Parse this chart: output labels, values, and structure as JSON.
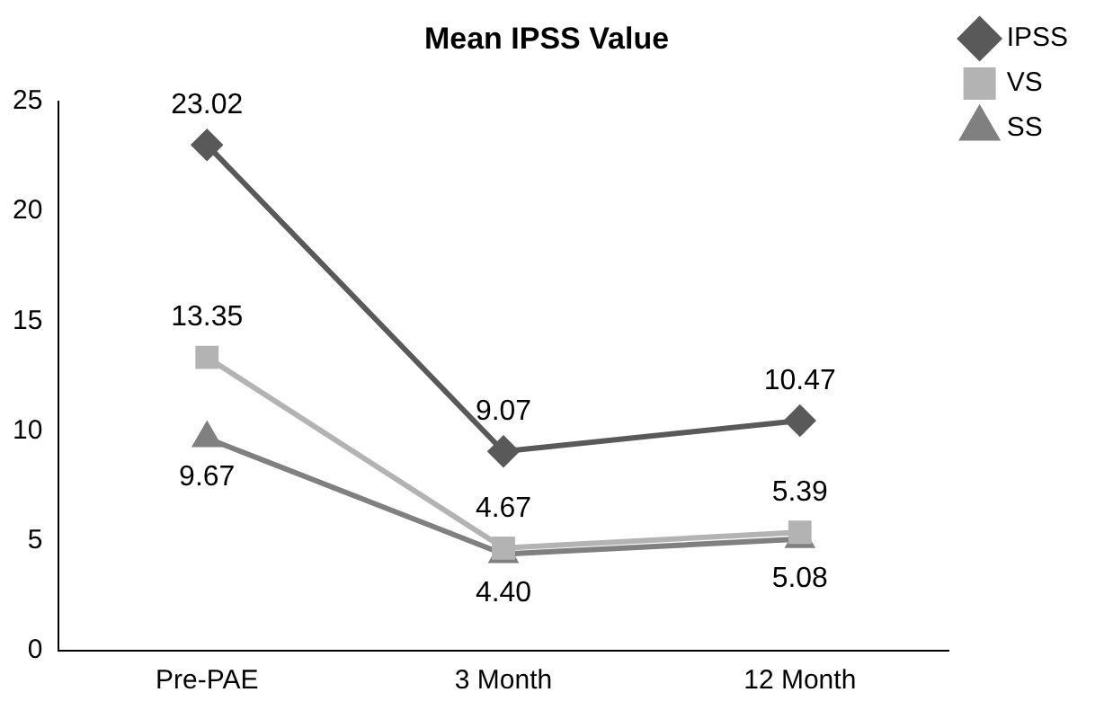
{
  "chart_data": {
    "type": "line",
    "title": "Mean IPSS Value",
    "categories": [
      "Pre-PAE",
      "3 Month",
      "12 Month"
    ],
    "series": [
      {
        "name": "IPSS",
        "color": "#595959",
        "values": [
          23.02,
          9.07,
          10.47
        ],
        "value_labels": [
          "23.02",
          "9.07",
          "10.47"
        ],
        "marker": "diamond"
      },
      {
        "name": "VS",
        "color": "#b3b3b3",
        "values": [
          13.35,
          4.67,
          5.39
        ],
        "value_labels": [
          "13.35",
          "4.67",
          "5.39"
        ],
        "marker": "square"
      },
      {
        "name": "SS",
        "color": "#808080",
        "values": [
          9.67,
          4.4,
          5.08
        ],
        "value_labels": [
          "9.67",
          "4.40",
          "5.08"
        ],
        "marker": "triangle"
      }
    ],
    "ylim": [
      0,
      25
    ],
    "yticks": [
      0,
      5,
      10,
      15,
      20,
      25
    ],
    "grid": false,
    "legend": "top right",
    "line_style": "solid"
  }
}
